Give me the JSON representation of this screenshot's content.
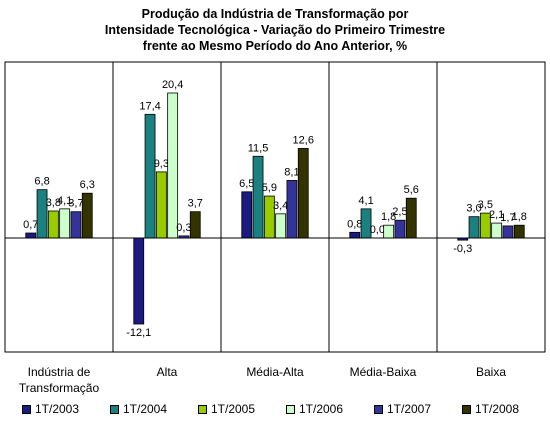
{
  "chart_data": {
    "type": "bar",
    "title": [
      "Produção da Indústria de Transformação por",
      "Intensidade Tecnológica - Variação do Primeiro Trimestre",
      "frente ao Mesmo Período do Ano Anterior, %"
    ],
    "categories": [
      [
        "Indústria de",
        "Transformação"
      ],
      [
        "Alta"
      ],
      [
        "Média-Alta"
      ],
      [
        "Média-Baixa"
      ],
      [
        "Baixa"
      ]
    ],
    "series": [
      {
        "name": "1T/2003",
        "color": "#1a1a80",
        "values": [
          0.7,
          -12.1,
          6.5,
          0.8,
          -0.3
        ],
        "labels": [
          "0,7",
          "-12,1",
          "6,5",
          "0,8",
          "-0,3"
        ]
      },
      {
        "name": "1T/2004",
        "color": "#1a8080",
        "values": [
          6.8,
          17.4,
          11.5,
          4.1,
          3.0
        ],
        "labels": [
          "6,8",
          "17,4",
          "11,5",
          "4,1",
          "3,0"
        ]
      },
      {
        "name": "1T/2005",
        "color": "#99cc00",
        "values": [
          3.8,
          9.3,
          5.9,
          0.0,
          3.5
        ],
        "labels": [
          "3,8",
          "9,3",
          "5,9",
          "0,0",
          "3,5"
        ]
      },
      {
        "name": "1T/2006",
        "color": "#ccffcc",
        "values": [
          4.1,
          20.4,
          3.4,
          1.8,
          2.1
        ],
        "labels": [
          "4,1",
          "20,4",
          "3,4",
          "1,8",
          "2,1"
        ]
      },
      {
        "name": "1T/2007",
        "color": "#333399",
        "values": [
          3.7,
          0.3,
          8.1,
          2.5,
          1.7
        ],
        "labels": [
          "3,7",
          "0,3",
          "8,1",
          "2,5",
          "1,7"
        ]
      },
      {
        "name": "1T/2008",
        "color": "#333300",
        "values": [
          6.3,
          3.7,
          12.6,
          5.6,
          1.8
        ],
        "labels": [
          "6,3",
          "3,7",
          "12,6",
          "5,6",
          "1,8"
        ]
      }
    ],
    "ylim": [
      -15,
      25
    ],
    "grid": false,
    "legend": "bottom",
    "xlabel": "",
    "ylabel": ""
  }
}
